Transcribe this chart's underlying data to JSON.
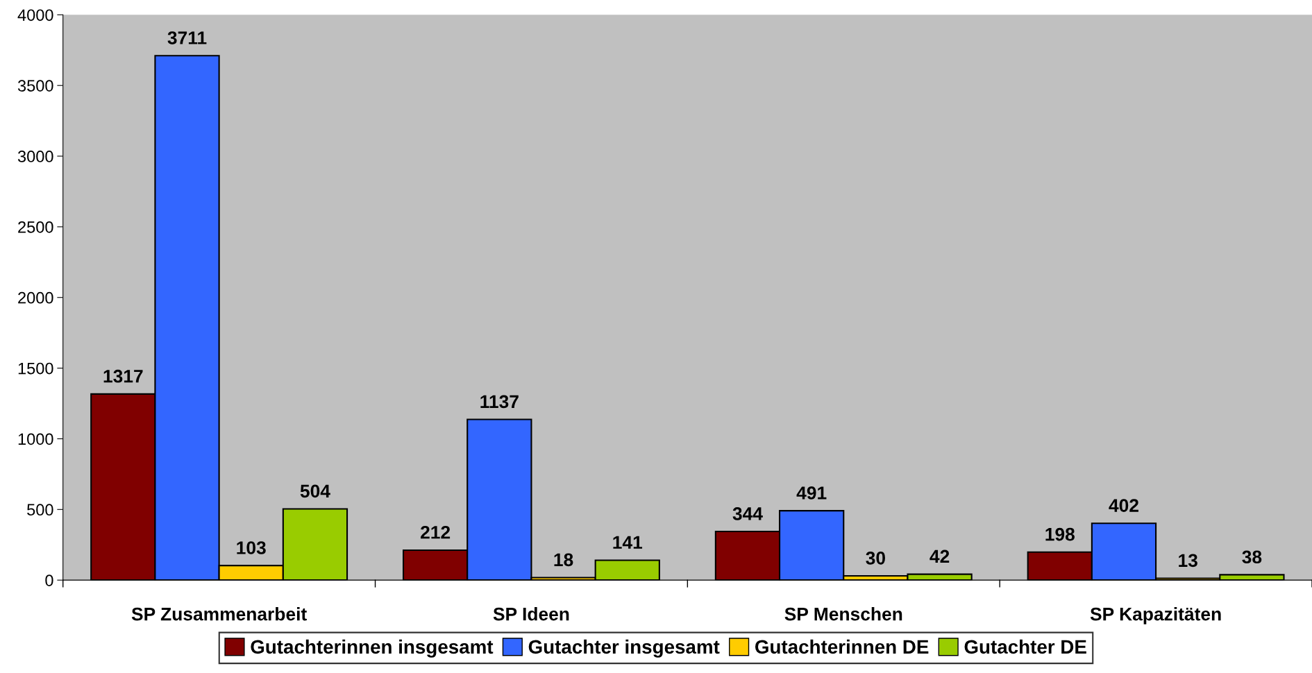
{
  "chart_data": {
    "type": "bar",
    "categories": [
      "SP Zusammenarbeit",
      "SP Ideen",
      "SP Menschen",
      "SP Kapazitäten"
    ],
    "series": [
      {
        "name": "Gutachterinnen insgesamt",
        "color": "#800000",
        "values": [
          1317,
          212,
          344,
          198
        ]
      },
      {
        "name": "Gutachter insgesamt",
        "color": "#3366ff",
        "values": [
          3711,
          1137,
          491,
          402
        ]
      },
      {
        "name": "Gutachterinnen DE",
        "color": "#ffcc00",
        "values": [
          103,
          18,
          30,
          13
        ]
      },
      {
        "name": "Gutachter DE",
        "color": "#99cc00",
        "values": [
          504,
          141,
          42,
          38
        ]
      }
    ],
    "ylim": [
      0,
      4000
    ],
    "yticks": [
      0,
      500,
      1000,
      1500,
      2000,
      2500,
      3000,
      3500,
      4000
    ],
    "data_labels": true,
    "grid": false,
    "legend": "bottom"
  }
}
